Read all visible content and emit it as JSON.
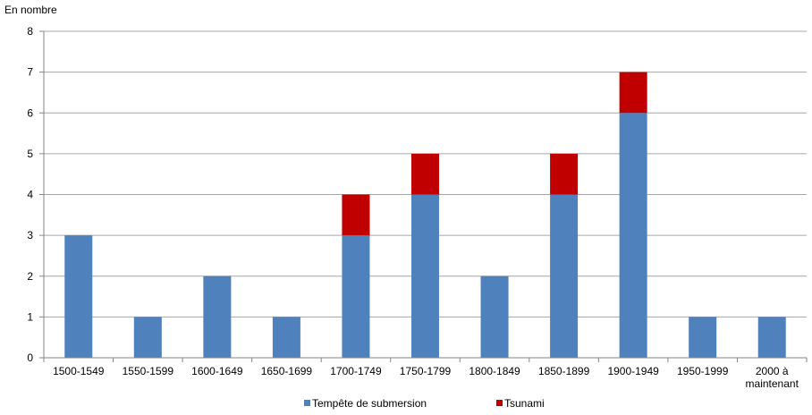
{
  "chart_data": {
    "type": "bar",
    "stacked": true,
    "ylabel": "En nombre",
    "xlabel": "",
    "ylim": [
      0,
      8
    ],
    "yticks": [
      0,
      1,
      2,
      3,
      4,
      5,
      6,
      7,
      8
    ],
    "grid": true,
    "legend_position": "bottom",
    "categories": [
      "1500-1549",
      "1550-1599",
      "1600-1649",
      "1650-1699",
      "1700-1749",
      "1750-1799",
      "1800-1849",
      "1850-1899",
      "1900-1949",
      "1950-1999",
      "2000 à maintenant"
    ],
    "series": [
      {
        "name": "Tempête de submersion",
        "color": "#4F81BD",
        "values": [
          3,
          1,
          2,
          1,
          3,
          4,
          2,
          4,
          6,
          1,
          1
        ]
      },
      {
        "name": "Tsunami",
        "color": "#C00000",
        "values": [
          0,
          0,
          0,
          0,
          1,
          1,
          0,
          1,
          1,
          0,
          0
        ]
      }
    ]
  }
}
